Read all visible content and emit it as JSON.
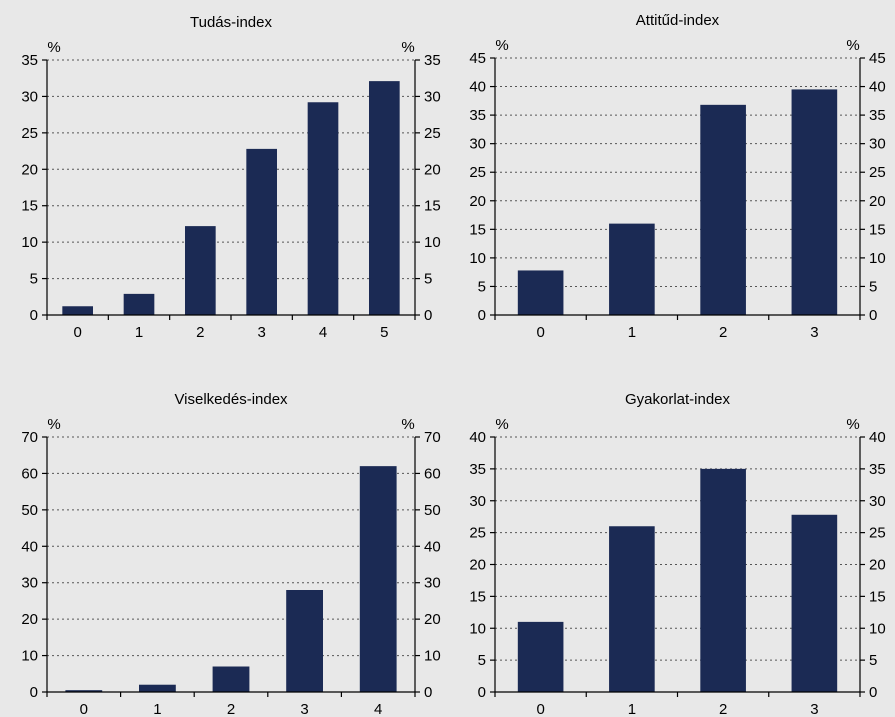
{
  "colors": {
    "bar": "#1b2a54",
    "background": "#e8e8e8",
    "axis": "#000000",
    "grid": "#555555"
  },
  "chart_data": [
    {
      "type": "bar",
      "title": "Tudás-index",
      "categories": [
        "0",
        "1",
        "2",
        "3",
        "4",
        "5"
      ],
      "values": [
        1.2,
        2.9,
        12.2,
        22.8,
        29.2,
        32.1
      ],
      "ylim": [
        0,
        35
      ],
      "ytick_step": 5,
      "yunit_left": "%",
      "yunit_right": "%",
      "grid": true,
      "ylabel": "",
      "xlabel": ""
    },
    {
      "type": "bar",
      "title": "Attitűd-index",
      "categories": [
        "0",
        "1",
        "2",
        "3"
      ],
      "values": [
        7.8,
        16.0,
        36.8,
        39.5
      ],
      "ylim": [
        0,
        45
      ],
      "ytick_step": 5,
      "yunit_left": "%",
      "yunit_right": "%",
      "grid": true,
      "ylabel": "",
      "xlabel": ""
    },
    {
      "type": "bar",
      "title": "Viselkedés-index",
      "categories": [
        "0",
        "1",
        "2",
        "3",
        "4"
      ],
      "values": [
        0.5,
        2.0,
        7.0,
        28.0,
        62.0
      ],
      "ylim": [
        0,
        70
      ],
      "ytick_step": 10,
      "yunit_left": "%",
      "yunit_right": "%",
      "grid": true,
      "ylabel": "",
      "xlabel": ""
    },
    {
      "type": "bar",
      "title": "Gyakorlat-index",
      "categories": [
        "0",
        "1",
        "2",
        "3"
      ],
      "values": [
        11.0,
        26.0,
        35.0,
        27.8
      ],
      "ylim": [
        0,
        40
      ],
      "ytick_step": 5,
      "yunit_left": "%",
      "yunit_right": "%",
      "grid": true,
      "ylabel": "",
      "xlabel": ""
    }
  ]
}
